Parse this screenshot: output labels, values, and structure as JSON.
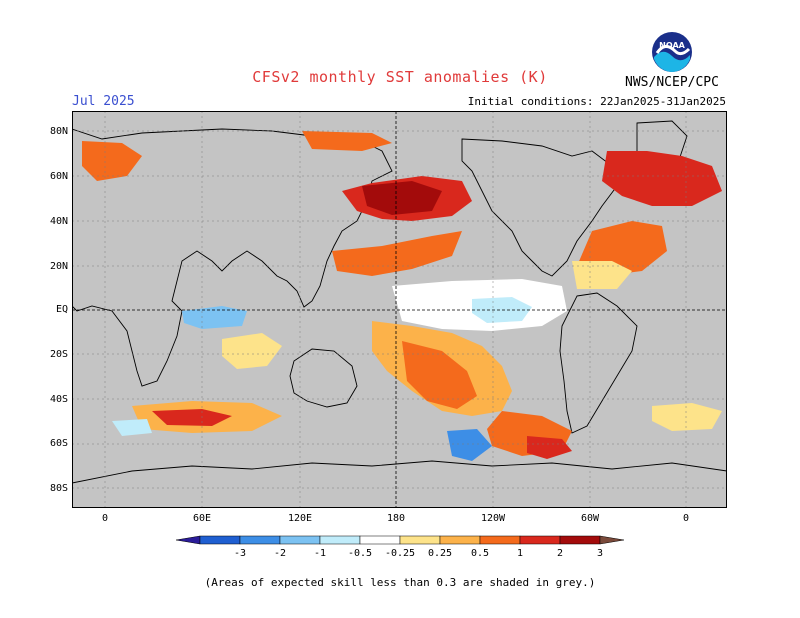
{
  "title": "CFSv2 monthly SST anomalies (K)",
  "valid_month": "Jul 2025",
  "initial_conditions": "Initial conditions: 22Jan2025-31Jan2025",
  "agency": "NWS/NCEP/CPC",
  "logo_text": "NOAA",
  "footnote": "(Areas of expected skill less than 0.3 are shaded in grey.)",
  "lat_labels": [
    "80N",
    "60N",
    "40N",
    "20N",
    "EQ",
    "20S",
    "40S",
    "60S",
    "80S"
  ],
  "lon_labels": [
    "0",
    "60E",
    "120E",
    "180",
    "120W",
    "60W",
    "0"
  ],
  "colorbar": {
    "labels": [
      "-3",
      "-2",
      "-1",
      "-0.5",
      "-0.25",
      "0.25",
      "0.5",
      "1",
      "2",
      "3"
    ],
    "colors": [
      "#2b1c99",
      "#1f5fd1",
      "#3d8ee6",
      "#7cc2f2",
      "#c0ecfa",
      "#ffffff",
      "#fde38a",
      "#fcb24a",
      "#f46a1c",
      "#d9281d",
      "#a30b0b",
      "#7a4a3a"
    ]
  },
  "colors": {
    "land": "#ffffff",
    "grey_mask": "#c4c4c4",
    "title": "#e03a3a",
    "month": "#3a4fd0"
  }
}
